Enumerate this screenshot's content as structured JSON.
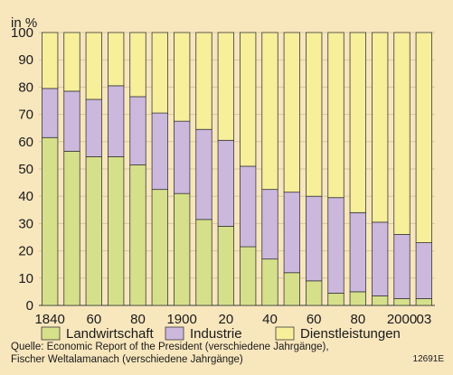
{
  "chart_data": {
    "type": "bar",
    "stacked": true,
    "ylabel": "in %",
    "ylim": [
      0,
      100
    ],
    "yticks": [
      0,
      10,
      20,
      30,
      40,
      50,
      60,
      70,
      80,
      90,
      100
    ],
    "grid": true,
    "x_tick_labels": [
      "1840",
      "",
      "60",
      "",
      "80",
      "",
      "1900",
      "",
      "20",
      "",
      "40",
      "",
      "60",
      "",
      "80",
      "",
      "2000",
      "03"
    ],
    "series": [
      {
        "name": "Landwirtschaft",
        "color": "#d6e08a",
        "values": [
          61.5,
          56.5,
          54.5,
          54.5,
          51.5,
          42.5,
          41,
          31.5,
          29,
          21.5,
          17,
          12,
          9,
          4.5,
          5,
          3.5,
          2.5,
          2.5
        ]
      },
      {
        "name": "Industrie",
        "color": "#ccb8dc",
        "values": [
          18,
          22,
          21,
          26,
          25,
          28,
          26.5,
          33,
          31.5,
          29.5,
          25.5,
          29.5,
          31,
          35,
          29,
          27,
          23.5,
          20.5
        ]
      },
      {
        "name": "Dienstleistungen",
        "color": "#f7ef9a",
        "values": [
          20.5,
          21.5,
          24.5,
          19.5,
          23.5,
          29.5,
          32.5,
          35.5,
          39.5,
          49,
          57.5,
          58.5,
          60,
          60.5,
          66,
          69.5,
          74,
          77
        ]
      }
    ],
    "legend_position": "bottom"
  },
  "source_line1": "Quelle: Economic Report of the President (verschiedene Jahrgänge),",
  "source_line2": "Fischer Weltalamanach (verschiedene Jahrgänge)",
  "code": "12691E"
}
